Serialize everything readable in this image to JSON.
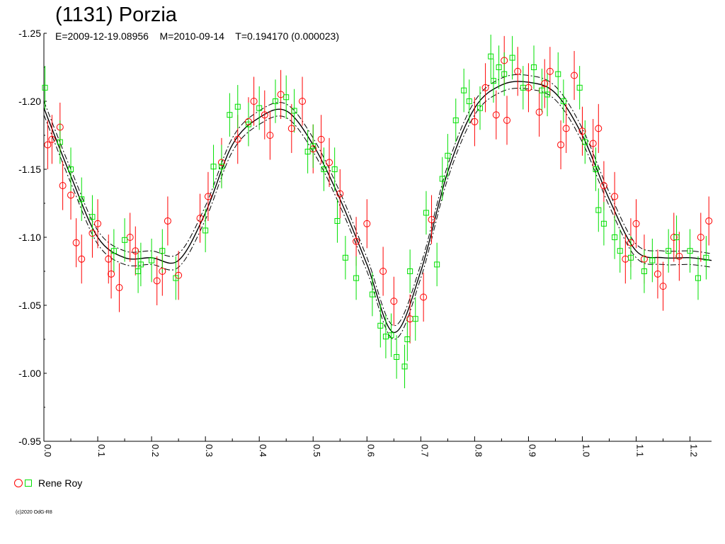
{
  "header": {
    "title": "(1131) Porzia",
    "subtitle": "E=2009-12-19.08956    M=2010-09-14    T=0.194170 (0.000023)"
  },
  "legend": {
    "label": "Rene Roy"
  },
  "footer": {
    "copyright": "(c)2020 OdG-R8"
  },
  "colors": {
    "series1": "#ff0000",
    "series2": "#00e000",
    "curve": "#000000",
    "background": "#ffffff"
  },
  "chart_data": {
    "type": "scatter",
    "title": "(1131) Porzia",
    "xlim": [
      0.0,
      1.24
    ],
    "ylim": [
      -1.25,
      -0.95
    ],
    "y_inverted": true,
    "x_ticks": [
      0.0,
      0.1,
      0.2,
      0.3,
      0.4,
      0.5,
      0.6,
      0.7,
      0.8,
      0.9,
      1.0,
      1.1,
      1.2
    ],
    "x_tick_labels": [
      "0.0",
      "0.1",
      "0.2",
      "0.3",
      "0.4",
      "0.5",
      "0.6",
      "0.7",
      "0.8",
      "0.9",
      "1.0",
      "1.1",
      "1.2"
    ],
    "y_ticks": [
      -1.25,
      -1.2,
      -1.15,
      -1.1,
      -1.05,
      -1.0,
      -0.95
    ],
    "y_tick_labels": [
      "-1.25",
      "-1.20",
      "-1.15",
      "-1.10",
      "-1.05",
      "-1.00",
      "-0.95"
    ],
    "grid": false,
    "legend_position": "bottom-left",
    "fit_curve": {
      "x": [
        0.0,
        0.05,
        0.1,
        0.15,
        0.2,
        0.25,
        0.3,
        0.35,
        0.4,
        0.45,
        0.5,
        0.55,
        0.6,
        0.65,
        0.7,
        0.75,
        0.8,
        0.85,
        0.9,
        0.95,
        1.0,
        1.05,
        1.1,
        1.15,
        1.2,
        1.24
      ],
      "y": [
        -1.195,
        -1.145,
        -1.1,
        -1.085,
        -1.085,
        -1.083,
        -1.118,
        -1.168,
        -1.188,
        -1.193,
        -1.168,
        -1.128,
        -1.08,
        -1.03,
        -1.075,
        -1.148,
        -1.195,
        -1.212,
        -1.214,
        -1.206,
        -1.175,
        -1.128,
        -1.09,
        -1.085,
        -1.085,
        -1.083
      ],
      "envelope_offset": 0.005
    },
    "series": [
      {
        "name": "Rene Roy",
        "marker": "circle",
        "color": "#ff0000",
        "x": [
          0.007,
          0.015,
          0.03,
          0.035,
          0.05,
          0.06,
          0.07,
          0.09,
          0.1,
          0.12,
          0.125,
          0.14,
          0.16,
          0.17,
          0.21,
          0.22,
          0.23,
          0.25,
          0.29,
          0.305,
          0.33,
          0.36,
          0.38,
          0.39,
          0.41,
          0.42,
          0.44,
          0.46,
          0.48,
          0.5,
          0.515,
          0.53,
          0.55,
          0.58,
          0.6,
          0.63,
          0.65,
          0.68,
          0.705,
          0.72,
          0.8,
          0.82,
          0.84,
          0.855,
          0.86,
          0.88,
          0.9,
          0.92,
          0.93,
          0.94,
          0.96,
          0.97,
          0.985,
          1.0,
          1.02,
          1.03,
          1.04,
          1.06,
          1.08,
          1.09,
          1.1,
          1.115,
          1.14,
          1.15,
          1.17,
          1.18,
          1.22,
          1.235
        ],
        "y": [
          -1.168,
          -1.172,
          -1.181,
          -1.138,
          -1.131,
          -1.096,
          -1.084,
          -1.103,
          -1.11,
          -1.084,
          -1.073,
          -1.063,
          -1.1,
          -1.09,
          -1.068,
          -1.075,
          -1.112,
          -1.072,
          -1.114,
          -1.13,
          -1.155,
          -1.172,
          -1.185,
          -1.2,
          -1.19,
          -1.175,
          -1.205,
          -1.18,
          -1.2,
          -1.165,
          -1.172,
          -1.155,
          -1.132,
          -1.097,
          -1.11,
          -1.075,
          -1.053,
          -1.04,
          -1.056,
          -1.113,
          -1.185,
          -1.21,
          -1.19,
          -1.23,
          -1.186,
          -1.222,
          -1.21,
          -1.192,
          -1.213,
          -1.222,
          -1.168,
          -1.18,
          -1.219,
          -1.178,
          -1.169,
          -1.18,
          -1.138,
          -1.13,
          -1.084,
          -1.096,
          -1.11,
          -1.084,
          -1.073,
          -1.064,
          -1.1,
          -1.086,
          -1.1,
          -1.112
        ],
        "error": [
          0.018,
          0.018,
          0.018,
          0.018,
          0.018,
          0.018,
          0.018,
          0.018,
          0.018,
          0.018,
          0.018,
          0.018,
          0.018,
          0.018,
          0.018,
          0.018,
          0.018,
          0.018,
          0.018,
          0.018,
          0.018,
          0.018,
          0.018,
          0.018,
          0.018,
          0.018,
          0.018,
          0.018,
          0.018,
          0.018,
          0.018,
          0.018,
          0.018,
          0.018,
          0.018,
          0.018,
          0.018,
          0.018,
          0.018,
          0.018,
          0.018,
          0.018,
          0.018,
          0.018,
          0.018,
          0.018,
          0.018,
          0.018,
          0.018,
          0.018,
          0.018,
          0.018,
          0.018,
          0.018,
          0.018,
          0.018,
          0.018,
          0.018,
          0.018,
          0.018,
          0.018,
          0.018,
          0.018,
          0.018,
          0.018,
          0.018,
          0.018,
          0.018
        ]
      },
      {
        "name": "Rene Roy",
        "marker": "square",
        "color": "#00e000",
        "x": [
          0.002,
          0.03,
          0.05,
          0.07,
          0.09,
          0.13,
          0.15,
          0.175,
          0.18,
          0.2,
          0.22,
          0.245,
          0.3,
          0.315,
          0.33,
          0.345,
          0.36,
          0.38,
          0.4,
          0.43,
          0.45,
          0.465,
          0.49,
          0.5,
          0.52,
          0.54,
          0.545,
          0.56,
          0.58,
          0.61,
          0.625,
          0.635,
          0.645,
          0.655,
          0.67,
          0.675,
          0.68,
          0.69,
          0.71,
          0.73,
          0.74,
          0.75,
          0.765,
          0.78,
          0.79,
          0.81,
          0.83,
          0.835,
          0.845,
          0.855,
          0.87,
          0.89,
          0.91,
          0.925,
          0.935,
          0.955,
          0.965,
          0.995,
          1.005,
          1.025,
          1.03,
          1.04,
          1.06,
          1.07,
          1.09,
          1.115,
          1.13,
          1.16,
          1.175,
          1.2,
          1.215,
          1.23
        ],
        "y": [
          -1.21,
          -1.17,
          -1.15,
          -1.128,
          -1.115,
          -1.09,
          -1.098,
          -1.075,
          -1.08,
          -1.083,
          -1.09,
          -1.07,
          -1.105,
          -1.152,
          -1.152,
          -1.19,
          -1.196,
          -1.183,
          -1.195,
          -1.2,
          -1.203,
          -1.193,
          -1.163,
          -1.167,
          -1.15,
          -1.15,
          -1.112,
          -1.085,
          -1.07,
          -1.058,
          -1.035,
          -1.027,
          -1.028,
          -1.012,
          -1.005,
          -1.025,
          -1.075,
          -1.04,
          -1.118,
          -1.08,
          -1.143,
          -1.16,
          -1.186,
          -1.208,
          -1.2,
          -1.195,
          -1.233,
          -1.215,
          -1.225,
          -1.22,
          -1.232,
          -1.21,
          -1.225,
          -1.208,
          -1.205,
          -1.22,
          -1.2,
          -1.21,
          -1.17,
          -1.15,
          -1.12,
          -1.11,
          -1.1,
          -1.09,
          -1.085,
          -1.075,
          -1.083,
          -1.09,
          -1.1,
          -1.09,
          -1.07,
          -1.085
        ],
        "error": [
          0.016,
          0.016,
          0.016,
          0.016,
          0.016,
          0.016,
          0.016,
          0.016,
          0.016,
          0.016,
          0.016,
          0.016,
          0.016,
          0.016,
          0.016,
          0.016,
          0.016,
          0.016,
          0.016,
          0.016,
          0.016,
          0.016,
          0.016,
          0.016,
          0.016,
          0.016,
          0.016,
          0.016,
          0.016,
          0.016,
          0.016,
          0.016,
          0.016,
          0.016,
          0.016,
          0.016,
          0.016,
          0.016,
          0.016,
          0.016,
          0.016,
          0.016,
          0.016,
          0.016,
          0.016,
          0.016,
          0.016,
          0.016,
          0.016,
          0.016,
          0.016,
          0.016,
          0.016,
          0.016,
          0.016,
          0.016,
          0.016,
          0.016,
          0.016,
          0.016,
          0.016,
          0.016,
          0.016,
          0.016,
          0.016,
          0.016,
          0.016,
          0.016,
          0.016,
          0.016,
          0.016,
          0.016
        ]
      }
    ]
  }
}
